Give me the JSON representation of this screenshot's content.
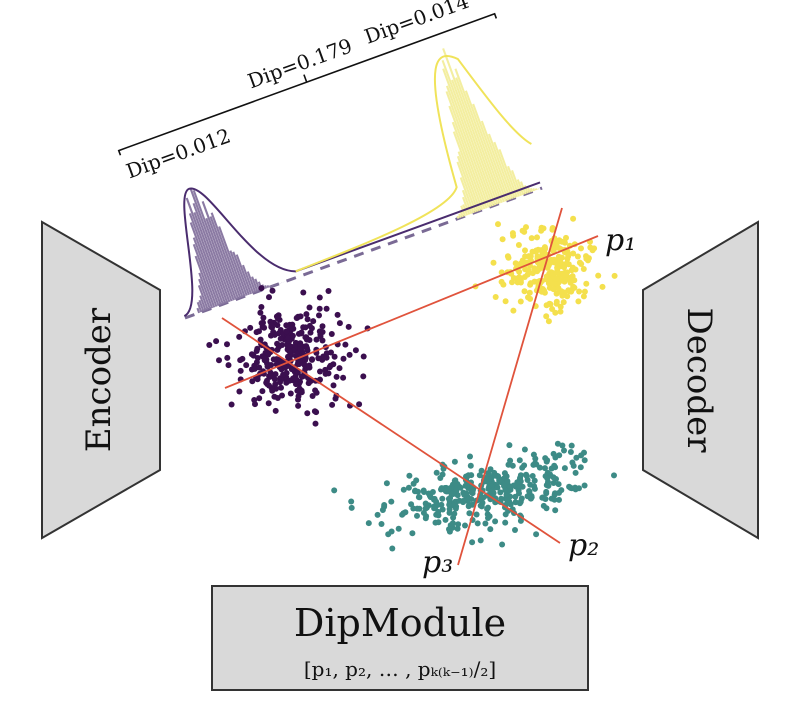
{
  "encoder": {
    "label": "Encoder"
  },
  "decoder": {
    "label": "Decoder"
  },
  "dip_module": {
    "title": "DipModule",
    "params": "[p₁, p₂, … , pₖ₍ₖ₋₁₎∕₂]"
  },
  "projections": [
    {
      "label": "p₁"
    },
    {
      "label": "p₂"
    },
    {
      "label": "p₃"
    }
  ],
  "dip_values": [
    {
      "label": "Dip=0.179"
    },
    {
      "label": "Dip=0.012"
    },
    {
      "label": "Dip=0.014"
    }
  ],
  "colors": {
    "cluster_purple": "#3b0f4f",
    "cluster_teal": "#3d8b86",
    "cluster_yellow": "#f4e04d",
    "hist_purple": "#8b7aa3",
    "hist_yellow": "#f3eea0",
    "projection_line": "#e0533c",
    "box_fill": "#d9d9d9"
  }
}
